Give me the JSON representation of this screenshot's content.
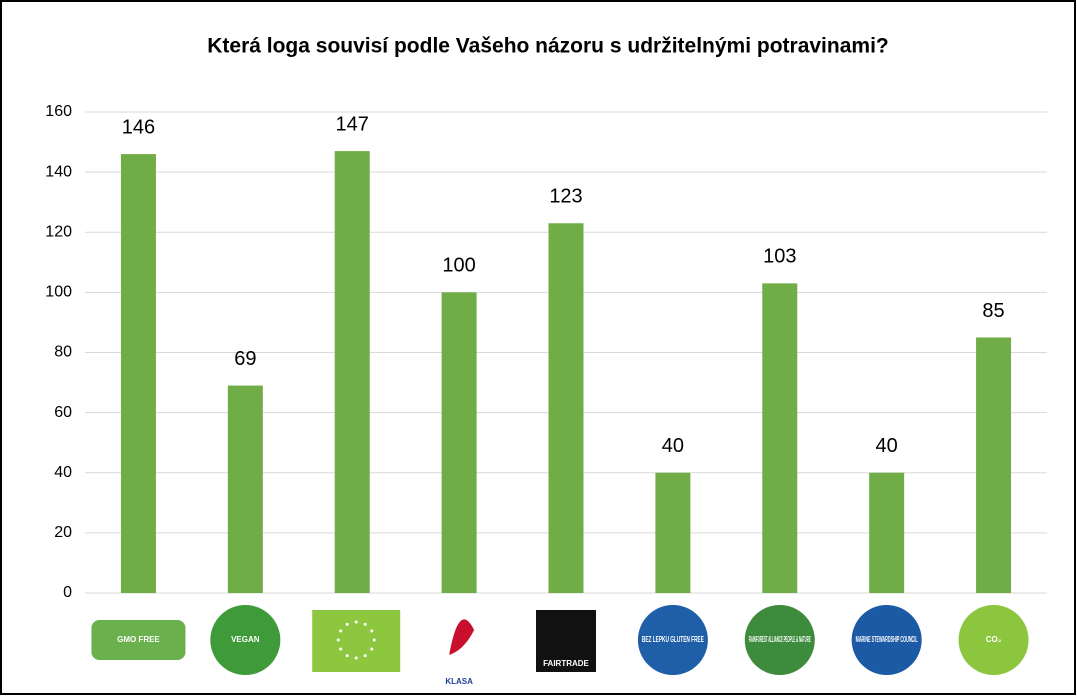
{
  "chart_data": {
    "type": "bar",
    "title": "Která loga souvisí podle Vašeho názoru s udržitelnými potravinami?",
    "categories": [
      "GMO FREE",
      "VEGAN",
      null,
      "KLASA",
      "FAIRTRADE",
      "BEZ LEPKU GLUTEN FREE",
      "RAINFOREST ALLIANCE PEOPLE & NATURE",
      "MARINE STEWARDSHIP COUNCIL",
      "CO₂"
    ],
    "values": [
      146,
      69,
      147,
      100,
      123,
      40,
      103,
      40,
      85
    ],
    "color": "#70ad47",
    "ylim": [
      0,
      160
    ],
    "yticks": [
      0,
      20,
      40,
      60,
      80,
      100,
      120,
      140,
      160
    ],
    "grid": true
  }
}
